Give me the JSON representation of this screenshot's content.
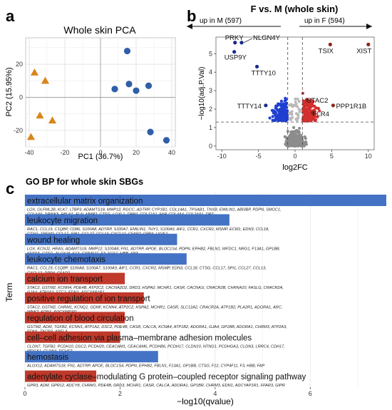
{
  "panels": {
    "a": "a",
    "b": "b",
    "c": "c"
  },
  "colors": {
    "blue": "#2f5fa7",
    "orange": "#d8861c",
    "bar_blue": "#4472c4",
    "bar_red": "#c0392b",
    "volcano_blue": "#1f3fd0",
    "volcano_red": "#d32f2f",
    "volcano_grey": "#8c8c8c",
    "dark_red": "#8b2a1a"
  },
  "chart_data": [
    {
      "type": "scatter",
      "title": "Whole skin PCA",
      "xlabel": "PC1 (36.7%)",
      "ylabel": "PC2 (15.95%)",
      "xlim": [
        -42,
        42
      ],
      "ylim": [
        -30,
        36
      ],
      "xticks": [
        -40,
        -20,
        0,
        20,
        40
      ],
      "yticks": [
        -20,
        0,
        20
      ],
      "grid": true,
      "series": [
        {
          "marker": "circle",
          "color": "#2f5fa7",
          "points": [
            [
              15,
              28
            ],
            [
              8,
              5
            ],
            [
              16,
              8
            ],
            [
              20,
              4
            ],
            [
              27,
              7
            ],
            [
              28,
              -21
            ],
            [
              37,
              -26
            ]
          ]
        },
        {
          "marker": "triangle",
          "color": "#d8861c",
          "points": [
            [
              -37,
              15
            ],
            [
              -31,
              10
            ],
            [
              -34,
              -11
            ],
            [
              -27,
              -14
            ],
            [
              -39,
              -24
            ]
          ]
        }
      ]
    },
    {
      "type": "scatter",
      "title": "F vs. M (whole skin)",
      "xlabel": "log2FC",
      "ylabel": "−log10(adj.P.Val)",
      "xlim": [
        -10.8,
        10.8
      ],
      "ylim": [
        -0.2,
        5.9
      ],
      "xticks": [
        -10,
        -5,
        0,
        5,
        10
      ],
      "yticks": [
        0,
        1,
        2,
        3,
        4,
        5
      ],
      "threshold_x": [
        -1,
        1
      ],
      "threshold_y": 1.3,
      "arrow_left_label": "up in M (597)",
      "arrow_right_label": "up in F (594)",
      "labels": [
        {
          "text": "PRKY",
          "x": -8.2,
          "y": 5.6
        },
        {
          "text": "NLGN4Y",
          "x": -7.3,
          "y": 5.6
        },
        {
          "text": "USP9Y",
          "x": -8.3,
          "y": 5.1
        },
        {
          "text": "TTTY10",
          "x": -5.2,
          "y": 4.3
        },
        {
          "text": "TTTY14",
          "x": -4.0,
          "y": 2.2
        },
        {
          "text": "TSIX",
          "x": 4.8,
          "y": 5.5
        },
        {
          "text": "XIST",
          "x": 10.0,
          "y": 5.5
        },
        {
          "text": "STAC2",
          "x": 1.6,
          "y": 2.5
        },
        {
          "text": "PPP1R1B",
          "x": 5.2,
          "y": 2.2
        },
        {
          "text": "FLR4",
          "x": 2.4,
          "y": 1.8
        }
      ]
    },
    {
      "type": "bar",
      "orientation": "horizontal",
      "title": "GO BP for whole skin SBGs",
      "xlabel": "−log10(qvalue)",
      "ylabel": "Term",
      "xlim": [
        0,
        7.6
      ],
      "xticks": [
        0,
        2,
        4,
        6
      ],
      "categories": [
        "extracellular matrix organization",
        "leukocyte migration",
        "wound healing",
        "leukocyte chemotaxis",
        "calcium ion transport",
        "positive regulation of ion transport",
        "regulation of blood circulation",
        "cell–cell adhesion via plasma–membrane adhesion molecules",
        "hemostasis",
        "adenylate cyclase–modulating G protein–coupled receptor signaling pathway"
      ],
      "values": [
        7.6,
        4.3,
        3.2,
        3.4,
        2.1,
        2.5,
        2.1,
        2.0,
        2.8,
        1.5
      ],
      "bar_colors": [
        "blue",
        "blue",
        "blue",
        "blue",
        "red",
        "red",
        "red",
        "red",
        "blue",
        "red"
      ],
      "genes": [
        "LOX, OLFML2B, KLK7, LTBP3, ADAMTS18, MMP12, RGCC, ADTRP, CYP1B1, COL14A1, TPSAB1, TNXB, EMILIN1, ABI3BP, PDPN, SMOC1, COL6A6, SPINK5, FBLN1, ELN, MMP2, CTSG, LOXL1, DPP4, COL11A1, FAP, COL4A4, COL24A1, DPT",
        "RAC1, CCL19, C1QBP, CD86, S100A8, ADTRP, S100A7, EMILIN1, THY1, S100A9, AIF1, CCR1, CXCR2, MSMP, ECM1, EDN3, CCL18, CTSG, TREM2, CCL17, SPI1, CCL27, CCL13, CXCL12, C5AR2, DPP4, LYVE1",
        "LOX, KCNJ2, HRAS, ADAMTS18, MMP12, S100A8, FN1, ADTRP, APOE, BLOC1S4, PDPN, EPHB2, FBLN1, WFDC1, NRG1, F13A1, GP1BB, KRT6A, CTSG, ALOX15, F12, CYP4F11, F3, FGF1, HBB, FAP",
        "RAC1, CCL19, C1QBP, S100A8, S100A7, S100A9, AIF1, CCR1, CXCR2, MSMP, EDN3, CCL18, CTSG, CCL17, SPI1, CCL27, CCL13, CXCL12, DPP4, C5AR2",
        "STAC2, GSTM2, KCNN4, PDE4B, ATP2C2, CACNA2D2, DRD3, HSPA2, MCHR1, CASR, CACNA1I, CRACR2B, CHRNA10, FASLG, CRACR2A, GJA4, ATP2A3, STC2, EDN1, ADCYAP1R1",
        "STAC2, GSTM2, CHRM1, KCNQ1, GDNF, KCNN4, ATP2C2, HSPA2, MCHR1, CASR, SLC12A2, CRACR2A, ATP1B2, PLA2R1, ADORA1, ARC, WNK2, EDN1, ADCYAP1R1",
        "GSTM2, ADM, TGFB2, KCNN1, ATP1A2, DSC2, PDE4B, CASR, CALCA, KCNA4, ATP1B2, ADORA1, GJA4, GP1BB, ADORA1, CHRM3, ATP2A3, EDN1, TACR3, APELA",
        "CLDN7, TGFB2, PCDH10, DSC2, PCDH20, CEACAM1, CEACAM6, PCDHB6, PCDH17, CLDN10, NTNG1, PCDHGA3, CLDN3, LRRC4, CDH17, MDGA1, CLDN4, DCHS2",
        "ALOX12, ADAMTS18, FN1, ADTRP, APOE, BLOC1S4, PDPN, EPHB2, FBLN1, F13A1, GP1BB, CTSG, F12, CYP4F11, F3, HBB, FAP",
        "GPR3, ADM, GPR12, ADCY8, CHRM1, PDE4B, DRD3, MCHR1, CASR, CALCA, ADORA1, GP1BR, CHRM3, EDN1, ADCYAP1R1, FFAR3, GIPR"
      ]
    }
  ]
}
